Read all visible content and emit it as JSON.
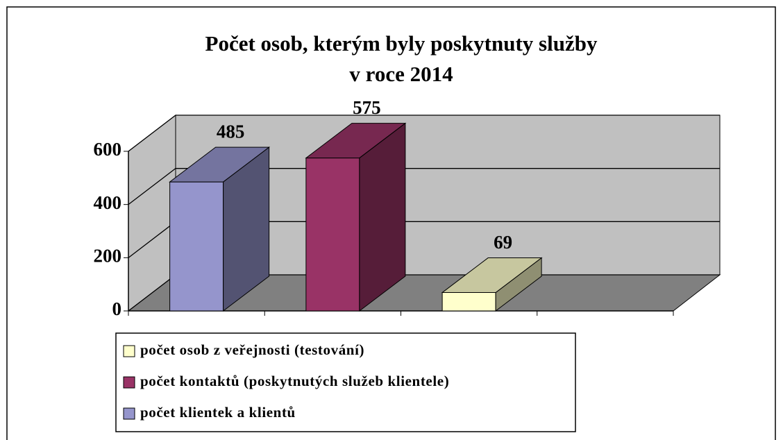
{
  "chart_data": {
    "type": "bar3d",
    "title": [
      "Počet osob, kterým byly poskytnuty služby",
      "v roce 2014"
    ],
    "series": [
      {
        "name": "počet klientek a klientů",
        "color": "#9595cc",
        "values": [
          485
        ]
      },
      {
        "name": "počet kontaktů (poskytnutých služeb klientele)",
        "color": "#993366",
        "values": [
          575
        ]
      },
      {
        "name": "počet osob z veřejnosti (testování)",
        "color": "#ffffcc",
        "values": [
          69
        ]
      }
    ],
    "ylim": [
      0,
      600
    ],
    "yticks": [
      0,
      200,
      400,
      600
    ],
    "grid": true
  }
}
